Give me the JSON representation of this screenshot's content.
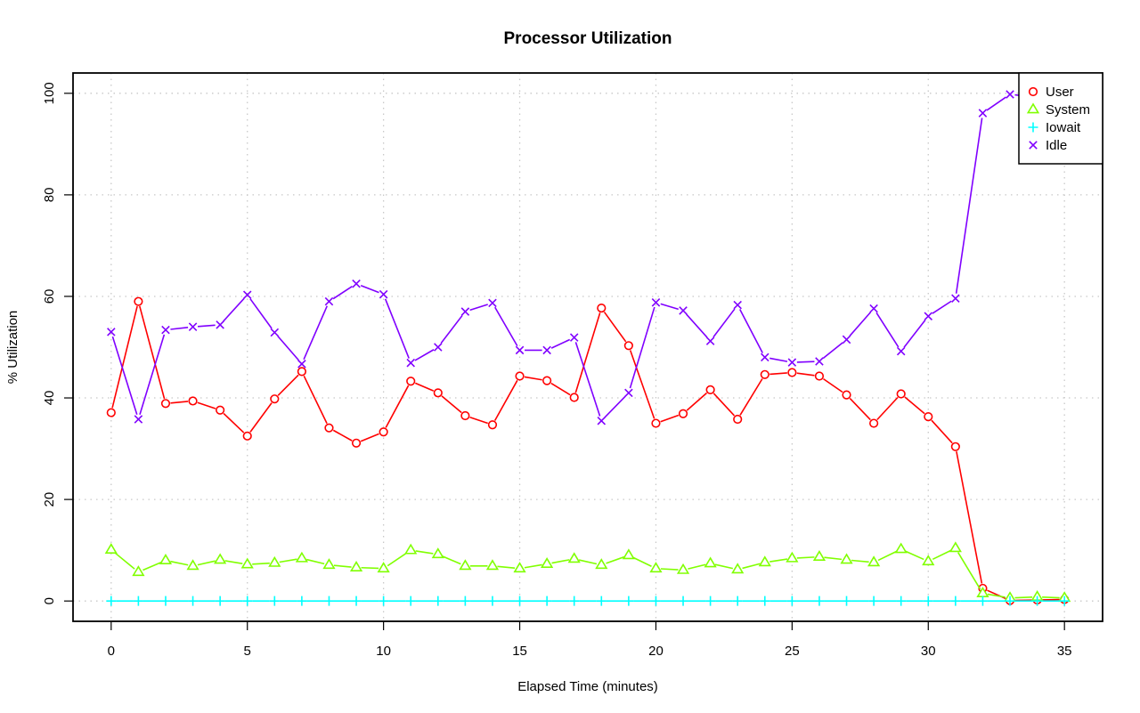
{
  "chart_data": {
    "type": "line",
    "title": "Processor Utilization",
    "xlabel": "Elapsed Time (minutes)",
    "ylabel": "% Utilization",
    "xlim": [
      -1.4,
      36.4
    ],
    "ylim": [
      -4,
      104
    ],
    "x_ticks": [
      0,
      5,
      10,
      15,
      20,
      25,
      30,
      35
    ],
    "y_ticks": [
      0,
      20,
      40,
      60,
      80,
      100
    ],
    "grid": true,
    "legend_position": "top-right",
    "x": [
      0,
      1,
      2,
      3,
      4,
      5,
      6,
      7,
      8,
      9,
      10,
      11,
      12,
      13,
      14,
      15,
      16,
      17,
      18,
      19,
      20,
      21,
      22,
      23,
      24,
      25,
      26,
      27,
      28,
      29,
      30,
      31,
      32,
      33,
      34,
      35
    ],
    "series": [
      {
        "name": "User",
        "color": "#ff0000",
        "marker": "circle",
        "values": [
          37.1,
          59,
          38.9,
          39.4,
          37.6,
          32.5,
          39.8,
          45.2,
          34.1,
          31.1,
          33.3,
          43.3,
          41,
          36.5,
          34.7,
          44.3,
          43.4,
          40.1,
          57.7,
          50.3,
          35,
          36.9,
          41.6,
          35.8,
          44.6,
          45,
          44.3,
          40.6,
          35,
          40.8,
          36.3,
          30.4,
          2.5,
          0.1,
          0.2,
          0.3
        ]
      },
      {
        "name": "System",
        "color": "#80ff00",
        "marker": "triangle",
        "values": [
          10.1,
          5.7,
          8,
          6.9,
          8.1,
          7.2,
          7.5,
          8.4,
          7.1,
          6.6,
          6.4,
          10,
          9.2,
          6.9,
          6.9,
          6.4,
          7.3,
          8.3,
          7.1,
          9,
          6.4,
          6.1,
          7.4,
          6.2,
          7.6,
          8.4,
          8.7,
          8.1,
          7.6,
          10.2,
          7.8,
          10.4,
          1.5,
          0.6,
          0.8,
          0.6
        ]
      },
      {
        "name": "Iowait",
        "color": "#00ffff",
        "marker": "plus",
        "values": [
          0,
          0,
          0,
          0,
          0,
          0,
          0,
          0,
          0,
          0,
          0,
          0,
          0,
          0,
          0,
          0,
          0,
          0,
          0,
          0,
          0,
          0,
          0,
          0,
          0,
          0,
          0,
          0,
          0,
          0,
          0,
          0,
          0,
          0,
          0,
          0
        ]
      },
      {
        "name": "Idle",
        "color": "#8000ff",
        "marker": "cross",
        "values": [
          53,
          35.8,
          53.4,
          54,
          54.4,
          60.3,
          52.9,
          46.7,
          59,
          62.5,
          60.4,
          46.9,
          50,
          57,
          58.7,
          49.4,
          49.4,
          51.9,
          35.5,
          41,
          58.8,
          57.2,
          51.2,
          58.3,
          48,
          47,
          47.2,
          51.5,
          57.6,
          49.2,
          56.1,
          59.6,
          96.1,
          99.8,
          99.2,
          99.1
        ]
      }
    ]
  }
}
